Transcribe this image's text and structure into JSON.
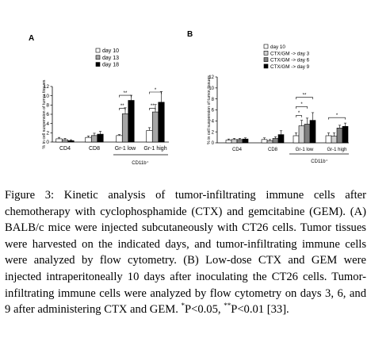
{
  "panels": [
    {
      "label": "A",
      "ylabel": "% in cell suspension of tumor tissues",
      "yticks": [
        0,
        2,
        4,
        6,
        8,
        10,
        12
      ],
      "ylim": [
        0,
        12
      ],
      "categories": [
        "CD4",
        "CD8",
        "Gr-1 low",
        "Gr-1 high"
      ],
      "group_label": "CD11b⁺",
      "legend": [
        "day 10",
        "day 13",
        "day 18"
      ],
      "series_colors": [
        "#ffffff",
        "#a6a6a6",
        "#000000"
      ],
      "values": [
        [
          0.7,
          0.5,
          0.3
        ],
        [
          1.0,
          1.4,
          1.7
        ],
        [
          1.4,
          6.1,
          9.0
        ],
        [
          2.5,
          6.5,
          8.6
        ]
      ],
      "errors": [
        [
          0.3,
          0.3,
          0.2
        ],
        [
          0.3,
          0.5,
          0.6
        ],
        [
          0.2,
          1.3,
          1.1
        ],
        [
          0.6,
          1.6,
          2.3
        ]
      ],
      "significance": [
        {
          "cat": 2,
          "from": 0,
          "to": 1,
          "y": 7.3,
          "label": "**"
        },
        {
          "cat": 2,
          "from": 0,
          "to": 2,
          "y": 10.1,
          "label": "**"
        },
        {
          "cat": 3,
          "from": 0,
          "to": 1,
          "y": 7.3,
          "label": "**"
        },
        {
          "cat": 3,
          "from": 0,
          "to": 2,
          "y": 10.8,
          "label": "*"
        }
      ]
    },
    {
      "label": "B",
      "ylabel": "% in cell suspension of tumor tissues",
      "yticks": [
        0,
        2,
        4,
        6,
        8,
        10,
        12
      ],
      "ylim": [
        0,
        12
      ],
      "categories": [
        "CD4",
        "CD8",
        "Gr-1 low",
        "Gr-1 high"
      ],
      "group_label": "CD11b⁺",
      "legend": [
        "day 10",
        "CTX/GM -> day 3",
        "CTX/GM -> day 6",
        "CTX/GM -> day 9"
      ],
      "series_colors": [
        "#ffffff",
        "#d0d0d0",
        "#808080",
        "#000000"
      ],
      "values": [
        [
          0.5,
          0.6,
          0.6,
          0.7
        ],
        [
          0.6,
          0.4,
          0.8,
          1.5
        ],
        [
          1.3,
          3.1,
          3.4,
          4.1
        ],
        [
          1.3,
          1.2,
          2.7,
          3.0
        ]
      ],
      "errors": [
        [
          0.2,
          0.2,
          0.2,
          0.2
        ],
        [
          0.3,
          0.2,
          0.3,
          0.7
        ],
        [
          0.5,
          1.0,
          1.1,
          1.4
        ],
        [
          0.5,
          0.6,
          0.5,
          0.6
        ]
      ],
      "significance": [
        {
          "cat": 2,
          "from": 0,
          "to": 1,
          "y": 5.0,
          "label": "*"
        },
        {
          "cat": 2,
          "from": 0,
          "to": 2,
          "y": 6.6,
          "label": "*"
        },
        {
          "cat": 2,
          "from": 0,
          "to": 3,
          "y": 8.3,
          "label": "**"
        },
        {
          "cat": 3,
          "from": 0,
          "to": 3,
          "y": 4.6,
          "label": "*"
        }
      ]
    }
  ],
  "caption": {
    "lead": "Figure 3:",
    "body": " Kinetic analysis of tumor-infiltrating immune cells after chemotherapy with cyclophosphamide (CTX) and gemcitabine (GEM). (A) BALB/c mice were injected subcutaneously with CT26 cells. Tumor tissues were harvested on the indicated days, and tumor-infiltrating immune cells were analyzed by flow cytometry. (B) Low-dose CTX and GEM were injected intraperitoneally 10 days after inoculating the CT26 cells. Tumor-infiltrating immune cells were analyzed by flow cytometry on days 3, 6, and 9 after administering CTX and GEM. ",
    "sig1_mark": "*",
    "sig1_text": "P<0.05, ",
    "sig2_mark": "**",
    "sig2_text": "P<0.01 [33]."
  }
}
